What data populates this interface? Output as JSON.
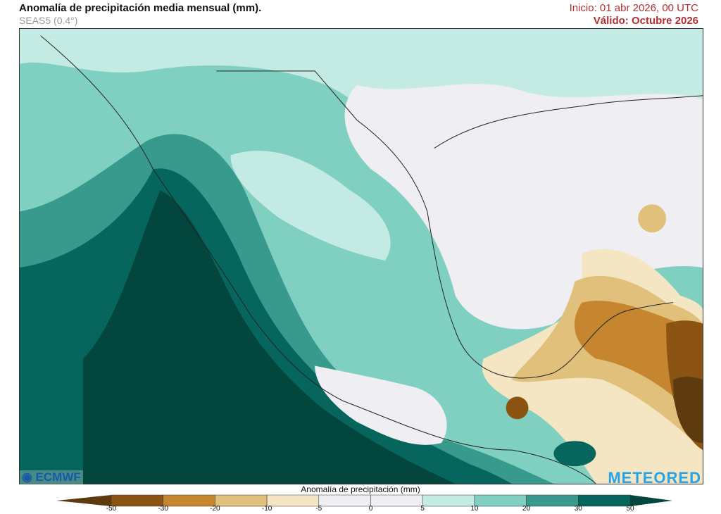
{
  "header": {
    "title": "Anomalía de precipitación media mensual (mm).",
    "subtitle": "SEAS5 (0.4°)",
    "init": "Inicio: 01 abr 2026, 00 UTC",
    "valid": "Válido: Octubre 2026"
  },
  "logos": {
    "left": "ECMWF",
    "right": "METEORED"
  },
  "legend": {
    "title": "Anomalía de precipitación (mm)",
    "ticks": [
      "-50",
      "-30",
      "-20",
      "-10",
      "-5",
      "0",
      "5",
      "10",
      "20",
      "30",
      "50"
    ],
    "colors": [
      "#5e3b0e",
      "#8c5412",
      "#c5862f",
      "#e0c07a",
      "#f5e6c3",
      "#eeeef3",
      "#eeeef3",
      "#c3ebe3",
      "#7fd0c1",
      "#379a8d",
      "#06665d",
      "#02463e"
    ]
  }
}
